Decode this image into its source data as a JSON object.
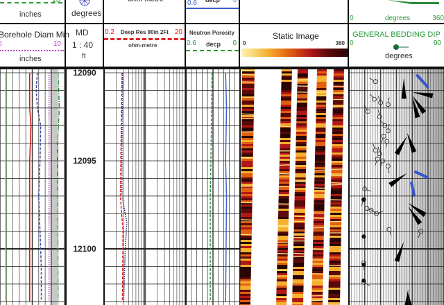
{
  "header_top": {
    "track1": {
      "scale_right": "10",
      "unit": "inches",
      "line_color": "#2a9a3a"
    },
    "track2": {
      "icon": "compass-icon",
      "unit": "degrees"
    },
    "track3": {
      "unit": "ohm-metre"
    },
    "track4": {
      "scale_left": "0.6",
      "unit": "decp",
      "scale_right": "0",
      "line_color": "#3a5fc8"
    },
    "track6": {
      "scale_left": "0",
      "unit": "degrees",
      "scale_right": "360"
    }
  },
  "header_main": {
    "track1": {
      "title": "Borehole Diam Min",
      "scale_left": "0",
      "scale_right": "10",
      "unit": "inches",
      "line_color": "#c040c0"
    },
    "track2": {
      "title": "MD",
      "scale": "1 : 40",
      "unit": "ft"
    },
    "track3": {
      "title": "Deep Res 90in 2Ft",
      "scale_left": "0.2",
      "scale_right": "20",
      "unit": "ohm-metre",
      "line_color": "#e02020"
    },
    "track4": {
      "title": "Neutron Porosity",
      "scale_left": "0.6",
      "unit": "decp",
      "scale_right": "0",
      "line_color": "#2a9a3a"
    },
    "track5": {
      "title": "Static Image",
      "scale_left": "0",
      "scale_right": "360"
    },
    "track6": {
      "title": "GENERAL BEDDING DIP",
      "scale_left": "0",
      "scale_right": "90",
      "unit": "degrees",
      "color": "#2a9a3a"
    }
  },
  "chart_data": {
    "type": "line",
    "title": "",
    "depth_range": [
      12090,
      12103
    ],
    "depth_ticks": [
      "12090",
      "12095",
      "12100"
    ],
    "depth_tick_values": [
      12090,
      12095,
      12100
    ],
    "tracks": [
      {
        "track": "track1",
        "scale": [
          0,
          10
        ],
        "series": [
          {
            "color": "#66cc44",
            "style": "solid",
            "points": [
              [
                12090,
                0.9
              ],
              [
                12103,
                0.9
              ]
            ]
          },
          {
            "color": "#cc1111",
            "style": "solid",
            "points": [
              [
                12090,
                4.6
              ],
              [
                12092,
                4.6
              ],
              [
                12093,
                4.8
              ],
              [
                12095,
                4.6
              ],
              [
                12103,
                4.6
              ]
            ]
          },
          {
            "color": "#3344aa",
            "style": "dashed",
            "points": [
              [
                12090,
                5.8
              ],
              [
                12091,
                5.6
              ],
              [
                12092,
                5.8
              ],
              [
                12093,
                6.3
              ],
              [
                12095,
                6.2
              ],
              [
                12097,
                6.0
              ],
              [
                12099,
                6.2
              ],
              [
                12101,
                6.4
              ],
              [
                12103,
                6.4
              ]
            ]
          },
          {
            "name": "Borehole Diam Min",
            "color": "#c040c0",
            "style": "dotted",
            "points": [
              [
                12090,
                7.6
              ],
              [
                12103,
                7.6
              ]
            ]
          },
          {
            "color": "#2a9a3a",
            "style": "dashdot",
            "points": [
              [
                12090,
                9.0
              ],
              [
                12092,
                9.2
              ],
              [
                12094,
                8.9
              ],
              [
                12103,
                9.0
              ]
            ]
          }
        ]
      },
      {
        "track": "track3",
        "scale": [
          0.2,
          20
        ],
        "log": true,
        "series": [
          {
            "name": "Deep Res 90in 2Ft",
            "color": "#e02020",
            "style": "dashed",
            "points": [
              [
                12090,
                0.55
              ],
              [
                12094,
                0.52
              ],
              [
                12097,
                0.5
              ],
              [
                12099,
                0.58
              ],
              [
                12103,
                0.56
              ]
            ]
          },
          {
            "color": "#222266",
            "style": "dotted",
            "points": [
              [
                12090,
                0.57
              ],
              [
                12094,
                0.55
              ],
              [
                12097,
                0.55
              ],
              [
                12098.5,
                0.72
              ],
              [
                12100,
                0.66
              ],
              [
                12103,
                0.6
              ]
            ]
          }
        ]
      },
      {
        "track": "track4",
        "scale": [
          0.6,
          0
        ],
        "series": [
          {
            "name": "Neutron Porosity",
            "color": "#2a9a3a",
            "style": "dashed",
            "points": [
              [
                12090,
                0.31
              ],
              [
                12094,
                0.32
              ],
              [
                12097,
                0.33
              ],
              [
                12103,
                0.33
              ]
            ]
          },
          {
            "color": "#3a5fc8",
            "style": "solid",
            "points": [
              [
                12090,
                0.16
              ],
              [
                12092,
                0.15
              ],
              [
                12095,
                0.16
              ],
              [
                12097,
                0.15
              ],
              [
                12103,
                0.16
              ]
            ]
          }
        ]
      }
    ],
    "dip_tadpoles": [
      [
        12090.5,
        25,
        300
      ],
      [
        12091.5,
        24,
        320
      ],
      [
        12091.7,
        30,
        340
      ],
      [
        12091.8,
        37,
        10
      ],
      [
        12092.2,
        18,
        330
      ],
      [
        12092.5,
        29,
        350
      ],
      [
        12093,
        34,
        320
      ],
      [
        12093.3,
        37,
        10
      ],
      [
        12093.6,
        33,
        200
      ],
      [
        12093.9,
        36,
        190
      ],
      [
        12094.4,
        25,
        340
      ],
      [
        12094.6,
        29,
        350
      ],
      [
        12094.9,
        27,
        200
      ],
      [
        12095,
        32,
        200
      ],
      [
        12095.3,
        37,
        170
      ],
      [
        12096.6,
        15,
        110
      ],
      [
        12097.2,
        14,
        200
      ],
      [
        12097.7,
        17,
        110
      ],
      [
        12097.8,
        21,
        120
      ],
      [
        12098,
        26,
        70
      ],
      [
        12098.9,
        38,
        160
      ],
      [
        12099,
        68,
        200
      ],
      [
        12100.8,
        14,
        180
      ],
      [
        12101.9,
        14,
        120
      ]
    ],
    "dip_filled": [
      [
        12097.2,
        14
      ],
      [
        12099.3,
        14
      ],
      [
        12100.9,
        14
      ],
      [
        12101.8,
        14
      ]
    ],
    "rose_fans": [
      {
        "depth": 12090.3,
        "dip": 52,
        "azimuth": 180
      },
      {
        "depth": 12091.1,
        "dip": 60,
        "azimuth": 100
      },
      {
        "depth": 12091.3,
        "dip": 60,
        "azimuth": 145
      },
      {
        "depth": 12091.4,
        "dip": 60,
        "azimuth": 165
      },
      {
        "depth": 12093.4,
        "dip": 55,
        "azimuth": 160
      },
      {
        "depth": 12093.6,
        "dip": 55,
        "azimuth": 210
      },
      {
        "depth": 12095.7,
        "dip": 55,
        "azimuth": 235
      },
      {
        "depth": 12097.4,
        "dip": 56,
        "azimuth": 125
      },
      {
        "depth": 12097.6,
        "dip": 56,
        "azimuth": 145
      },
      {
        "depth": 12099.6,
        "dip": 52,
        "azimuth": 200
      },
      {
        "depth": 12102.3,
        "dip": 56,
        "azimuth": 185
      },
      {
        "depth": 12102.5,
        "dip": 56,
        "azimuth": 170
      }
    ],
    "blue_dips": [
      [
        12090.1,
        64,
        150
      ],
      [
        12095.6,
        62,
        115
      ],
      [
        12096.2,
        59,
        195
      ]
    ],
    "image_colorscale": [
      "#fff3b0",
      "#f6b030",
      "#e06010",
      "#b01818",
      "#5a0a0a",
      "#2a0505"
    ]
  }
}
